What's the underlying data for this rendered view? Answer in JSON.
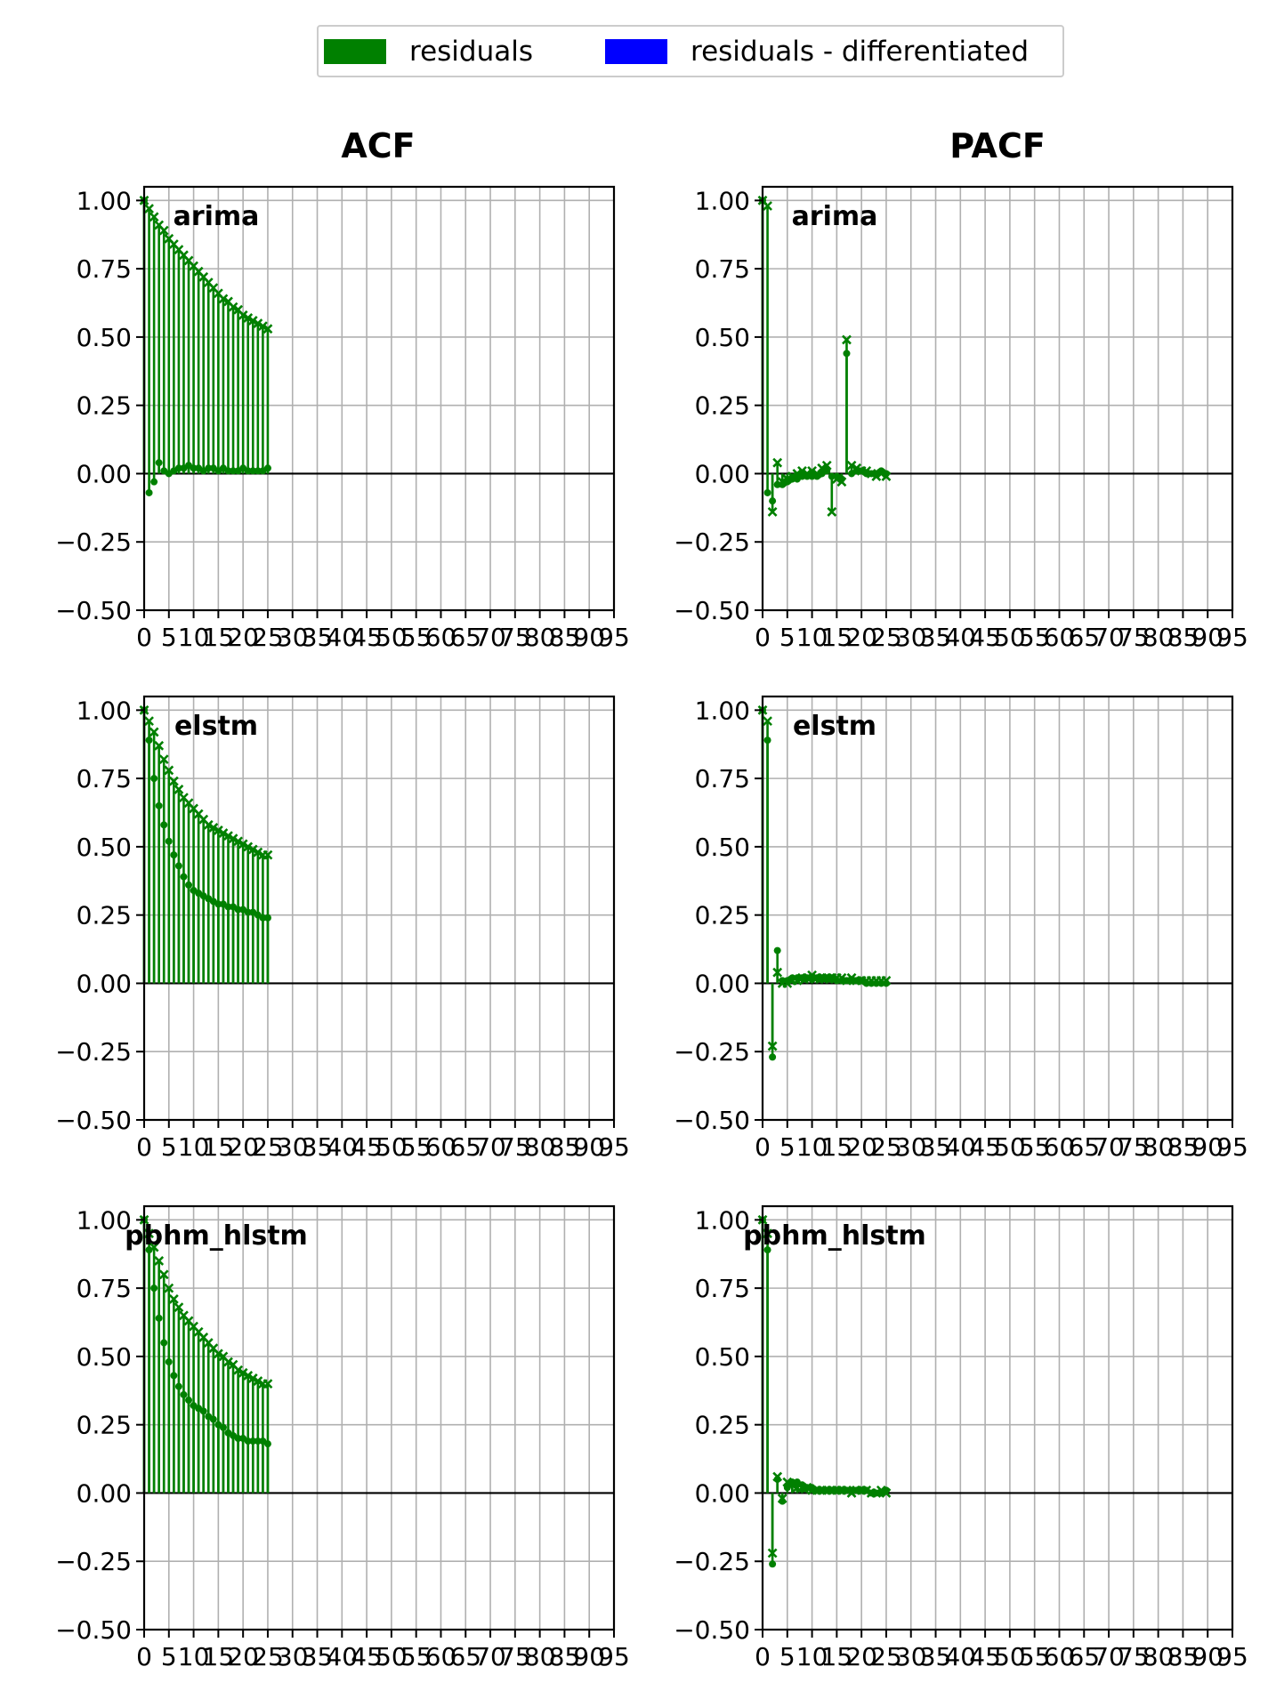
{
  "legend": {
    "items": [
      {
        "label": "residuals",
        "color": "#008000"
      },
      {
        "label": "residuals - differentiated",
        "color": "#0000ff"
      }
    ]
  },
  "columns": {
    "acf_title": "ACF",
    "pacf_title": "PACF"
  },
  "chart_data": [
    {
      "type": "stem",
      "model": "arima",
      "kind": "ACF",
      "ylim": [
        -0.5,
        1.05
      ],
      "xlim": [
        0,
        95
      ],
      "yticks": [
        -0.5,
        -0.25,
        0.0,
        0.25,
        0.5,
        0.75,
        1.0
      ],
      "yticklabels": [
        "−0.50",
        "−0.25",
        "0.00",
        "0.25",
        "0.50",
        "0.75",
        "1.00"
      ],
      "xticks": [
        0,
        5,
        10,
        15,
        20,
        25,
        30,
        35,
        40,
        45,
        50,
        55,
        60,
        65,
        70,
        75,
        80,
        85,
        90,
        95
      ],
      "xticklabels": [
        "0",
        "5",
        "10",
        "15",
        "20",
        "25",
        "30",
        "35",
        "40",
        "45",
        "50",
        "55",
        "60",
        "65",
        "70",
        "75",
        "80",
        "85",
        "90",
        "95"
      ],
      "grid": true,
      "label": "arima",
      "series": [
        {
          "name": "residuals",
          "marker": "x",
          "x": [
            0,
            1,
            2,
            3,
            4,
            5,
            6,
            7,
            8,
            9,
            10,
            11,
            12,
            13,
            14,
            15,
            16,
            17,
            18,
            19,
            20,
            21,
            22,
            23,
            24,
            25
          ],
          "values": [
            1.0,
            0.97,
            0.94,
            0.91,
            0.89,
            0.86,
            0.84,
            0.82,
            0.8,
            0.78,
            0.76,
            0.74,
            0.72,
            0.7,
            0.68,
            0.66,
            0.64,
            0.63,
            0.61,
            0.6,
            0.58,
            0.57,
            0.56,
            0.55,
            0.54,
            0.53
          ]
        },
        {
          "name": "residuals - differentiated",
          "marker": "o",
          "x": [
            0,
            1,
            2,
            3,
            4,
            5,
            6,
            7,
            8,
            9,
            10,
            11,
            12,
            13,
            14,
            15,
            16,
            17,
            18,
            19,
            20,
            21,
            22,
            23,
            24,
            25
          ],
          "values": [
            1.0,
            -0.07,
            -0.03,
            0.04,
            0.01,
            0.0,
            0.01,
            0.02,
            0.02,
            0.03,
            0.02,
            0.02,
            0.01,
            0.02,
            0.02,
            0.01,
            0.02,
            0.01,
            0.01,
            0.01,
            0.02,
            0.01,
            0.01,
            0.01,
            0.01,
            0.02
          ]
        }
      ]
    },
    {
      "type": "stem",
      "model": "arima",
      "kind": "PACF",
      "ylim": [
        -0.5,
        1.05
      ],
      "xlim": [
        0,
        95
      ],
      "yticks": [
        -0.5,
        -0.25,
        0.0,
        0.25,
        0.5,
        0.75,
        1.0
      ],
      "yticklabels": [
        "−0.50",
        "−0.25",
        "0.00",
        "0.25",
        "0.50",
        "0.75",
        "1.00"
      ],
      "xticks": [
        0,
        5,
        10,
        15,
        20,
        25,
        30,
        35,
        40,
        45,
        50,
        55,
        60,
        65,
        70,
        75,
        80,
        85,
        90,
        95
      ],
      "xticklabels": [
        "0",
        "5",
        "10",
        "15",
        "20",
        "25",
        "30",
        "35",
        "40",
        "45",
        "50",
        "55",
        "60",
        "65",
        "70",
        "75",
        "80",
        "85",
        "90",
        "95"
      ],
      "grid": true,
      "label": "arima",
      "series": [
        {
          "name": "residuals",
          "marker": "x",
          "x": [
            0,
            1,
            2,
            3,
            4,
            5,
            6,
            7,
            8,
            9,
            10,
            11,
            12,
            13,
            14,
            15,
            16,
            17,
            18,
            19,
            20,
            21,
            22,
            23,
            24,
            25
          ],
          "values": [
            1.0,
            0.98,
            -0.14,
            0.04,
            -0.03,
            -0.02,
            -0.01,
            0.0,
            0.01,
            0.0,
            0.01,
            0.0,
            0.02,
            0.03,
            -0.14,
            -0.02,
            -0.03,
            0.49,
            0.03,
            0.02,
            0.01,
            0.01,
            0.0,
            -0.01,
            0.0,
            -0.01
          ]
        },
        {
          "name": "residuals - differentiated",
          "marker": "o",
          "x": [
            0,
            1,
            2,
            3,
            4,
            5,
            6,
            7,
            8,
            9,
            10,
            11,
            12,
            13,
            14,
            15,
            16,
            17,
            18,
            19,
            20,
            21,
            22,
            23,
            24,
            25
          ],
          "values": [
            1.0,
            -0.07,
            -0.1,
            -0.04,
            -0.04,
            -0.03,
            -0.02,
            -0.02,
            -0.01,
            -0.01,
            -0.01,
            -0.01,
            0.0,
            0.01,
            -0.01,
            -0.01,
            -0.02,
            0.44,
            0.0,
            0.01,
            0.01,
            0.0,
            0.0,
            0.0,
            0.01,
            0.0
          ]
        }
      ]
    },
    {
      "type": "stem",
      "model": "elstm",
      "kind": "ACF",
      "ylim": [
        -0.5,
        1.05
      ],
      "xlim": [
        0,
        95
      ],
      "yticks": [
        -0.5,
        -0.25,
        0.0,
        0.25,
        0.5,
        0.75,
        1.0
      ],
      "yticklabels": [
        "−0.50",
        "−0.25",
        "0.00",
        "0.25",
        "0.50",
        "0.75",
        "1.00"
      ],
      "xticks": [
        0,
        5,
        10,
        15,
        20,
        25,
        30,
        35,
        40,
        45,
        50,
        55,
        60,
        65,
        70,
        75,
        80,
        85,
        90,
        95
      ],
      "xticklabels": [
        "0",
        "5",
        "10",
        "15",
        "20",
        "25",
        "30",
        "35",
        "40",
        "45",
        "50",
        "55",
        "60",
        "65",
        "70",
        "75",
        "80",
        "85",
        "90",
        "95"
      ],
      "grid": true,
      "label": "elstm",
      "series": [
        {
          "name": "residuals",
          "marker": "x",
          "x": [
            0,
            1,
            2,
            3,
            4,
            5,
            6,
            7,
            8,
            9,
            10,
            11,
            12,
            13,
            14,
            15,
            16,
            17,
            18,
            19,
            20,
            21,
            22,
            23,
            24,
            25
          ],
          "values": [
            1.0,
            0.96,
            0.92,
            0.87,
            0.82,
            0.78,
            0.74,
            0.71,
            0.68,
            0.66,
            0.64,
            0.62,
            0.6,
            0.58,
            0.57,
            0.56,
            0.55,
            0.54,
            0.53,
            0.52,
            0.51,
            0.5,
            0.49,
            0.48,
            0.47,
            0.47
          ]
        },
        {
          "name": "residuals - differentiated",
          "marker": "o",
          "x": [
            0,
            1,
            2,
            3,
            4,
            5,
            6,
            7,
            8,
            9,
            10,
            11,
            12,
            13,
            14,
            15,
            16,
            17,
            18,
            19,
            20,
            21,
            22,
            23,
            24,
            25
          ],
          "values": [
            1.0,
            0.89,
            0.75,
            0.65,
            0.58,
            0.52,
            0.47,
            0.43,
            0.39,
            0.36,
            0.34,
            0.33,
            0.32,
            0.31,
            0.3,
            0.29,
            0.29,
            0.28,
            0.28,
            0.27,
            0.27,
            0.26,
            0.26,
            0.25,
            0.24,
            0.24
          ]
        }
      ]
    },
    {
      "type": "stem",
      "model": "elstm",
      "kind": "PACF",
      "ylim": [
        -0.5,
        1.05
      ],
      "xlim": [
        0,
        95
      ],
      "yticks": [
        -0.5,
        -0.25,
        0.0,
        0.25,
        0.5,
        0.75,
        1.0
      ],
      "yticklabels": [
        "−0.50",
        "−0.25",
        "0.00",
        "0.25",
        "0.50",
        "0.75",
        "1.00"
      ],
      "xticks": [
        0,
        5,
        10,
        15,
        20,
        25,
        30,
        35,
        40,
        45,
        50,
        55,
        60,
        65,
        70,
        75,
        80,
        85,
        90,
        95
      ],
      "xticklabels": [
        "0",
        "5",
        "10",
        "15",
        "20",
        "25",
        "30",
        "35",
        "40",
        "45",
        "50",
        "55",
        "60",
        "65",
        "70",
        "75",
        "80",
        "85",
        "90",
        "95"
      ],
      "grid": true,
      "label": "elstm",
      "series": [
        {
          "name": "residuals",
          "marker": "x",
          "x": [
            0,
            1,
            2,
            3,
            4,
            5,
            6,
            7,
            8,
            9,
            10,
            11,
            12,
            13,
            14,
            15,
            16,
            17,
            18,
            19,
            20,
            21,
            22,
            23,
            24,
            25
          ],
          "values": [
            1.0,
            0.96,
            -0.23,
            0.04,
            0.0,
            0.0,
            0.01,
            0.01,
            0.02,
            0.02,
            0.03,
            0.02,
            0.02,
            0.02,
            0.02,
            0.02,
            0.02,
            0.01,
            0.02,
            0.01,
            0.01,
            0.01,
            0.01,
            0.01,
            0.01,
            0.01
          ]
        },
        {
          "name": "residuals - differentiated",
          "marker": "o",
          "x": [
            0,
            1,
            2,
            3,
            4,
            5,
            6,
            7,
            8,
            9,
            10,
            11,
            12,
            13,
            14,
            15,
            16,
            17,
            18,
            19,
            20,
            21,
            22,
            23,
            24,
            25
          ],
          "values": [
            1.0,
            0.89,
            -0.27,
            0.12,
            0.01,
            0.01,
            0.02,
            0.02,
            0.02,
            0.02,
            0.02,
            0.02,
            0.02,
            0.02,
            0.02,
            0.01,
            0.01,
            0.01,
            0.01,
            0.01,
            0.01,
            0.0,
            0.0,
            0.0,
            0.0,
            0.0
          ]
        }
      ]
    },
    {
      "type": "stem",
      "model": "pbhm_hlstm",
      "kind": "ACF",
      "ylim": [
        -0.5,
        1.05
      ],
      "xlim": [
        0,
        95
      ],
      "yticks": [
        -0.5,
        -0.25,
        0.0,
        0.25,
        0.5,
        0.75,
        1.0
      ],
      "yticklabels": [
        "−0.50",
        "−0.25",
        "0.00",
        "0.25",
        "0.50",
        "0.75",
        "1.00"
      ],
      "xticks": [
        0,
        5,
        10,
        15,
        20,
        25,
        30,
        35,
        40,
        45,
        50,
        55,
        60,
        65,
        70,
        75,
        80,
        85,
        90,
        95
      ],
      "xticklabels": [
        "0",
        "5",
        "10",
        "15",
        "20",
        "25",
        "30",
        "35",
        "40",
        "45",
        "50",
        "55",
        "60",
        "65",
        "70",
        "75",
        "80",
        "85",
        "90",
        "95"
      ],
      "grid": true,
      "label": "pbhm_hlstm",
      "series": [
        {
          "name": "residuals",
          "marker": "x",
          "x": [
            0,
            1,
            2,
            3,
            4,
            5,
            6,
            7,
            8,
            9,
            10,
            11,
            12,
            13,
            14,
            15,
            16,
            17,
            18,
            19,
            20,
            21,
            22,
            23,
            24,
            25
          ],
          "values": [
            1.0,
            0.95,
            0.9,
            0.85,
            0.8,
            0.75,
            0.71,
            0.68,
            0.65,
            0.63,
            0.61,
            0.59,
            0.57,
            0.55,
            0.53,
            0.51,
            0.5,
            0.48,
            0.47,
            0.45,
            0.44,
            0.43,
            0.42,
            0.41,
            0.4,
            0.4
          ]
        },
        {
          "name": "residuals - differentiated",
          "marker": "o",
          "x": [
            0,
            1,
            2,
            3,
            4,
            5,
            6,
            7,
            8,
            9,
            10,
            11,
            12,
            13,
            14,
            15,
            16,
            17,
            18,
            19,
            20,
            21,
            22,
            23,
            24,
            25
          ],
          "values": [
            1.0,
            0.89,
            0.75,
            0.64,
            0.55,
            0.48,
            0.43,
            0.39,
            0.36,
            0.34,
            0.32,
            0.31,
            0.3,
            0.28,
            0.27,
            0.25,
            0.24,
            0.22,
            0.21,
            0.2,
            0.2,
            0.19,
            0.19,
            0.19,
            0.19,
            0.18
          ]
        }
      ]
    },
    {
      "type": "stem",
      "model": "pbhm_hlstm",
      "kind": "PACF",
      "ylim": [
        -0.5,
        1.05
      ],
      "xlim": [
        0,
        95
      ],
      "yticks": [
        -0.5,
        -0.25,
        0.0,
        0.25,
        0.5,
        0.75,
        1.0
      ],
      "yticklabels": [
        "−0.50",
        "−0.25",
        "0.00",
        "0.25",
        "0.50",
        "0.75",
        "1.00"
      ],
      "xticks": [
        0,
        5,
        10,
        15,
        20,
        25,
        30,
        35,
        40,
        45,
        50,
        55,
        60,
        65,
        70,
        75,
        80,
        85,
        90,
        95
      ],
      "xticklabels": [
        "0",
        "5",
        "10",
        "15",
        "20",
        "25",
        "30",
        "35",
        "40",
        "45",
        "50",
        "55",
        "60",
        "65",
        "70",
        "75",
        "80",
        "85",
        "90",
        "95"
      ],
      "grid": true,
      "label": "pbhm_hlstm",
      "series": [
        {
          "name": "residuals",
          "marker": "x",
          "x": [
            0,
            1,
            2,
            3,
            4,
            5,
            6,
            7,
            8,
            9,
            10,
            11,
            12,
            13,
            14,
            15,
            16,
            17,
            18,
            19,
            20,
            21,
            22,
            23,
            24,
            25
          ],
          "values": [
            1.0,
            0.95,
            -0.22,
            0.06,
            -0.02,
            0.04,
            0.03,
            0.02,
            0.02,
            0.02,
            0.01,
            0.01,
            0.01,
            0.01,
            0.01,
            0.01,
            0.01,
            0.01,
            0.0,
            0.01,
            0.01,
            0.01,
            0.0,
            0.0,
            0.01,
            0.0
          ]
        },
        {
          "name": "residuals - differentiated",
          "marker": "o",
          "x": [
            0,
            1,
            2,
            3,
            4,
            5,
            6,
            7,
            8,
            9,
            10,
            11,
            12,
            13,
            14,
            15,
            16,
            17,
            18,
            19,
            20,
            21,
            22,
            23,
            24,
            25
          ],
          "values": [
            1.0,
            0.89,
            -0.26,
            0.05,
            -0.03,
            0.02,
            0.04,
            0.04,
            0.03,
            0.02,
            0.02,
            0.01,
            0.01,
            0.01,
            0.01,
            0.01,
            0.01,
            0.01,
            0.01,
            0.01,
            0.01,
            0.01,
            0.0,
            0.0,
            0.0,
            0.01
          ]
        }
      ]
    }
  ]
}
